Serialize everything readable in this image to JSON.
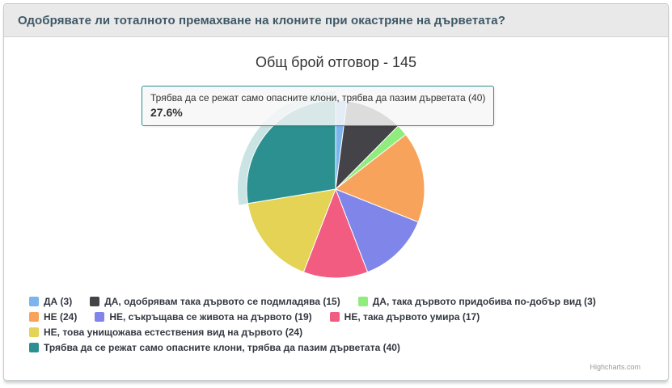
{
  "page": {
    "question_title": "Одобрявате ли тоталното премахване на клоните при окастряне на дърветата?",
    "header_bg": "#e9e9e9",
    "header_text_color": "#3e5866"
  },
  "chart": {
    "title": "Общ брой отговор - 145",
    "credit": "Highcharts.com",
    "tooltip": {
      "text": "Трябва да се режат само опасните клони, трябва да пазим дърветата (40)",
      "percent": "27.6%",
      "border_color": "#2b908f"
    }
  },
  "chart_data": {
    "type": "pie",
    "title": "Общ брой отговор - 145",
    "total": 145,
    "start_angle_deg": 0,
    "legend_position": "bottom-left",
    "hovered_slice_index": 7,
    "slices": [
      {
        "label": "ДА (3)",
        "value": 3,
        "percent": "2.1%",
        "color": "#7cb5ec"
      },
      {
        "label": "ДА, одобрявам така дървото се подмладява (15)",
        "value": 15,
        "percent": "10.3%",
        "color": "#434348"
      },
      {
        "label": "ДА, така дървото придобива по-добър вид (3)",
        "value": 3,
        "percent": "2.1%",
        "color": "#90ed7d"
      },
      {
        "label": "НЕ (24)",
        "value": 24,
        "percent": "16.6%",
        "color": "#f7a35c"
      },
      {
        "label": "НЕ, съкръщава се живота на дървото (19)",
        "value": 19,
        "percent": "13.1%",
        "color": "#8085e9"
      },
      {
        "label": "НЕ, така дървото умира (17)",
        "value": 17,
        "percent": "11.7%",
        "color": "#f15c80"
      },
      {
        "label": "НЕ, това унищожава естествения вид на дървото (24)",
        "value": 24,
        "percent": "16.6%",
        "color": "#e4d354"
      },
      {
        "label": "Трябва да се режат само опасните клони, трябва да пазим дърветата (40)",
        "value": 40,
        "percent": "27.6%",
        "color": "#2b908f",
        "hovered": true
      }
    ],
    "legend_rows": [
      [
        0,
        1,
        2
      ],
      [
        3,
        4,
        5
      ],
      [
        6
      ],
      [
        7
      ]
    ]
  }
}
